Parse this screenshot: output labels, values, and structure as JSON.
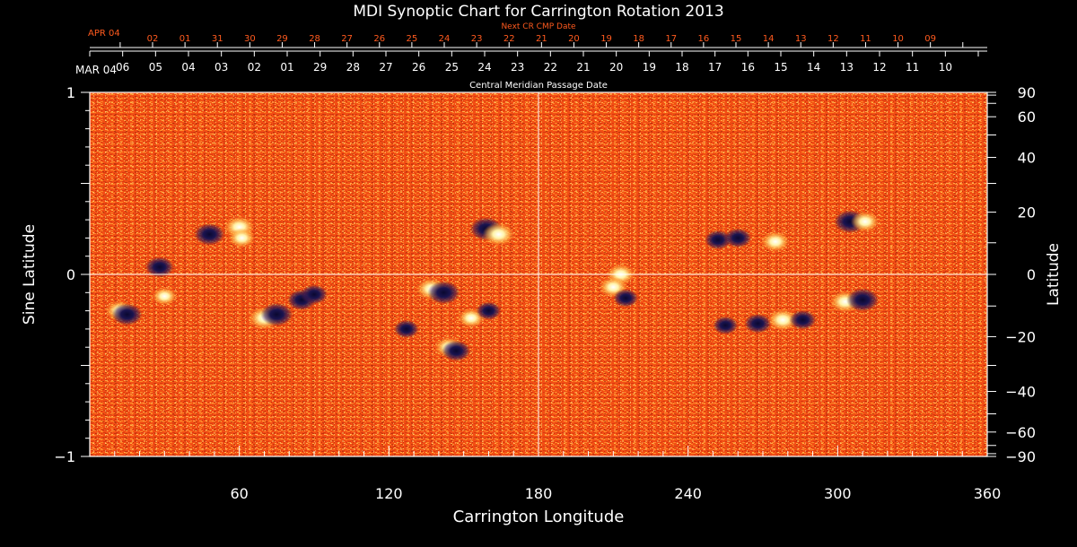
{
  "chart_data": {
    "type": "heatmap",
    "title": "MDI Synoptic Chart for Carrington Rotation 2013",
    "xlabel": "Carrington Longitude",
    "ylabel_left": "Sine Latitude",
    "ylabel_right": "Latitude",
    "xlim": [
      0,
      360
    ],
    "ylim": [
      -1,
      1
    ],
    "x_ticks": [
      60,
      120,
      180,
      240,
      300,
      360
    ],
    "y_ticks_left": [
      {
        "value": 1,
        "label": "1"
      },
      {
        "value": 0,
        "label": "0"
      },
      {
        "value": -1,
        "label": "−1"
      }
    ],
    "y_ticks_right": [
      {
        "deg": 90,
        "label": "90"
      },
      {
        "deg": 60,
        "label": "60"
      },
      {
        "deg": 40,
        "label": "40"
      },
      {
        "deg": 20,
        "label": "20"
      },
      {
        "deg": 0,
        "label": "0"
      },
      {
        "deg": -20,
        "label": "−20"
      },
      {
        "deg": -40,
        "label": "−40"
      },
      {
        "deg": -60,
        "label": "−60"
      },
      {
        "deg": -90,
        "label": "−90"
      }
    ],
    "cmp_axis": {
      "label": "Central Meridian Passage Date",
      "start_label": "MAR 04",
      "dates": [
        {
          "lon": 13.2,
          "label": "06"
        },
        {
          "lon": 26.4,
          "label": "05"
        },
        {
          "lon": 39.6,
          "label": "04"
        },
        {
          "lon": 52.8,
          "label": "03"
        },
        {
          "lon": 66.0,
          "label": "02"
        },
        {
          "lon": 79.2,
          "label": "01"
        },
        {
          "lon": 92.4,
          "label": "29"
        },
        {
          "lon": 105.6,
          "label": "28"
        },
        {
          "lon": 118.8,
          "label": "27"
        },
        {
          "lon": 132.0,
          "label": "26"
        },
        {
          "lon": 145.2,
          "label": "25"
        },
        {
          "lon": 158.4,
          "label": "24"
        },
        {
          "lon": 171.6,
          "label": "23"
        },
        {
          "lon": 184.8,
          "label": "22"
        },
        {
          "lon": 198.0,
          "label": "21"
        },
        {
          "lon": 211.2,
          "label": "20"
        },
        {
          "lon": 224.4,
          "label": "19"
        },
        {
          "lon": 237.6,
          "label": "18"
        },
        {
          "lon": 250.8,
          "label": "17"
        },
        {
          "lon": 264.0,
          "label": "16"
        },
        {
          "lon": 277.2,
          "label": "15"
        },
        {
          "lon": 290.4,
          "label": "14"
        },
        {
          "lon": 303.6,
          "label": "13"
        },
        {
          "lon": 316.8,
          "label": "12"
        },
        {
          "lon": 330.0,
          "label": "11"
        },
        {
          "lon": 343.2,
          "label": "10"
        }
      ]
    },
    "next_cmp_axis": {
      "label": "Next CR CMP Date",
      "start_label": "APR 04",
      "dates": [
        {
          "lon": 25.2,
          "label": "02"
        },
        {
          "lon": 38.2,
          "label": "01"
        },
        {
          "lon": 51.2,
          "label": "31"
        },
        {
          "lon": 64.2,
          "label": "30"
        },
        {
          "lon": 77.2,
          "label": "29"
        },
        {
          "lon": 90.2,
          "label": "28"
        },
        {
          "lon": 103.2,
          "label": "27"
        },
        {
          "lon": 116.2,
          "label": "26"
        },
        {
          "lon": 129.2,
          "label": "25"
        },
        {
          "lon": 142.2,
          "label": "24"
        },
        {
          "lon": 155.2,
          "label": "23"
        },
        {
          "lon": 168.2,
          "label": "22"
        },
        {
          "lon": 181.2,
          "label": "21"
        },
        {
          "lon": 194.2,
          "label": "20"
        },
        {
          "lon": 207.2,
          "label": "19"
        },
        {
          "lon": 220.2,
          "label": "18"
        },
        {
          "lon": 233.2,
          "label": "17"
        },
        {
          "lon": 246.2,
          "label": "16"
        },
        {
          "lon": 259.2,
          "label": "15"
        },
        {
          "lon": 272.2,
          "label": "14"
        },
        {
          "lon": 285.2,
          "label": "13"
        },
        {
          "lon": 298.2,
          "label": "12"
        },
        {
          "lon": 311.2,
          "label": "11"
        },
        {
          "lon": 324.2,
          "label": "10"
        },
        {
          "lon": 337.2,
          "label": "09"
        }
      ]
    },
    "grid_lines": {
      "lon": [
        180
      ],
      "sinlat": [
        0
      ]
    },
    "colors": {
      "background": "#000000",
      "field_base": "#f04e14",
      "field_mid": "#ff7a1e",
      "positive_polarity": "#fff7b8",
      "negative_polarity": "#1a1450",
      "next_axis_text": "#ff5a1e",
      "axis": "#ffffff"
    },
    "active_regions": [
      {
        "lon": 28,
        "sinlat": 0.04,
        "polarity": "negative",
        "strength": 0.8
      },
      {
        "lon": 48,
        "sinlat": 0.22,
        "polarity": "negative",
        "strength": 0.9
      },
      {
        "lon": 60,
        "sinlat": 0.26,
        "polarity": "positive",
        "strength": 0.9
      },
      {
        "lon": 61,
        "sinlat": 0.2,
        "polarity": "positive",
        "strength": 0.7
      },
      {
        "lon": 12,
        "sinlat": -0.2,
        "polarity": "positive",
        "strength": 0.8
      },
      {
        "lon": 15,
        "sinlat": -0.22,
        "polarity": "negative",
        "strength": 0.9
      },
      {
        "lon": 30,
        "sinlat": -0.12,
        "polarity": "positive",
        "strength": 0.6
      },
      {
        "lon": 70,
        "sinlat": -0.24,
        "polarity": "positive",
        "strength": 1.0
      },
      {
        "lon": 75,
        "sinlat": -0.22,
        "polarity": "negative",
        "strength": 1.0
      },
      {
        "lon": 85,
        "sinlat": -0.14,
        "polarity": "negative",
        "strength": 0.8
      },
      {
        "lon": 90,
        "sinlat": -0.11,
        "polarity": "negative",
        "strength": 0.7
      },
      {
        "lon": 127,
        "sinlat": -0.3,
        "polarity": "negative",
        "strength": 0.6
      },
      {
        "lon": 137,
        "sinlat": -0.08,
        "polarity": "positive",
        "strength": 0.9
      },
      {
        "lon": 142,
        "sinlat": -0.1,
        "polarity": "negative",
        "strength": 1.0
      },
      {
        "lon": 144,
        "sinlat": -0.4,
        "polarity": "positive",
        "strength": 0.8
      },
      {
        "lon": 147,
        "sinlat": -0.42,
        "polarity": "negative",
        "strength": 0.8
      },
      {
        "lon": 153,
        "sinlat": -0.24,
        "polarity": "positive",
        "strength": 0.7
      },
      {
        "lon": 160,
        "sinlat": -0.2,
        "polarity": "negative",
        "strength": 0.6
      },
      {
        "lon": 159,
        "sinlat": 0.25,
        "polarity": "negative",
        "strength": 1.0
      },
      {
        "lon": 164,
        "sinlat": 0.22,
        "polarity": "positive",
        "strength": 1.0
      },
      {
        "lon": 213,
        "sinlat": 0.0,
        "polarity": "positive",
        "strength": 0.8
      },
      {
        "lon": 210,
        "sinlat": -0.07,
        "polarity": "positive",
        "strength": 0.8
      },
      {
        "lon": 215,
        "sinlat": -0.13,
        "polarity": "negative",
        "strength": 0.6
      },
      {
        "lon": 252,
        "sinlat": 0.19,
        "polarity": "negative",
        "strength": 0.7
      },
      {
        "lon": 260,
        "sinlat": 0.2,
        "polarity": "negative",
        "strength": 0.7
      },
      {
        "lon": 275,
        "sinlat": 0.18,
        "polarity": "positive",
        "strength": 0.8
      },
      {
        "lon": 255,
        "sinlat": -0.28,
        "polarity": "negative",
        "strength": 0.6
      },
      {
        "lon": 268,
        "sinlat": -0.27,
        "polarity": "negative",
        "strength": 0.7
      },
      {
        "lon": 278,
        "sinlat": -0.25,
        "polarity": "positive",
        "strength": 0.9
      },
      {
        "lon": 286,
        "sinlat": -0.25,
        "polarity": "negative",
        "strength": 0.7
      },
      {
        "lon": 305,
        "sinlat": 0.29,
        "polarity": "negative",
        "strength": 1.0
      },
      {
        "lon": 311,
        "sinlat": 0.29,
        "polarity": "positive",
        "strength": 0.8
      },
      {
        "lon": 303,
        "sinlat": -0.15,
        "polarity": "positive",
        "strength": 0.9
      },
      {
        "lon": 310,
        "sinlat": -0.14,
        "polarity": "negative",
        "strength": 1.0
      }
    ]
  }
}
